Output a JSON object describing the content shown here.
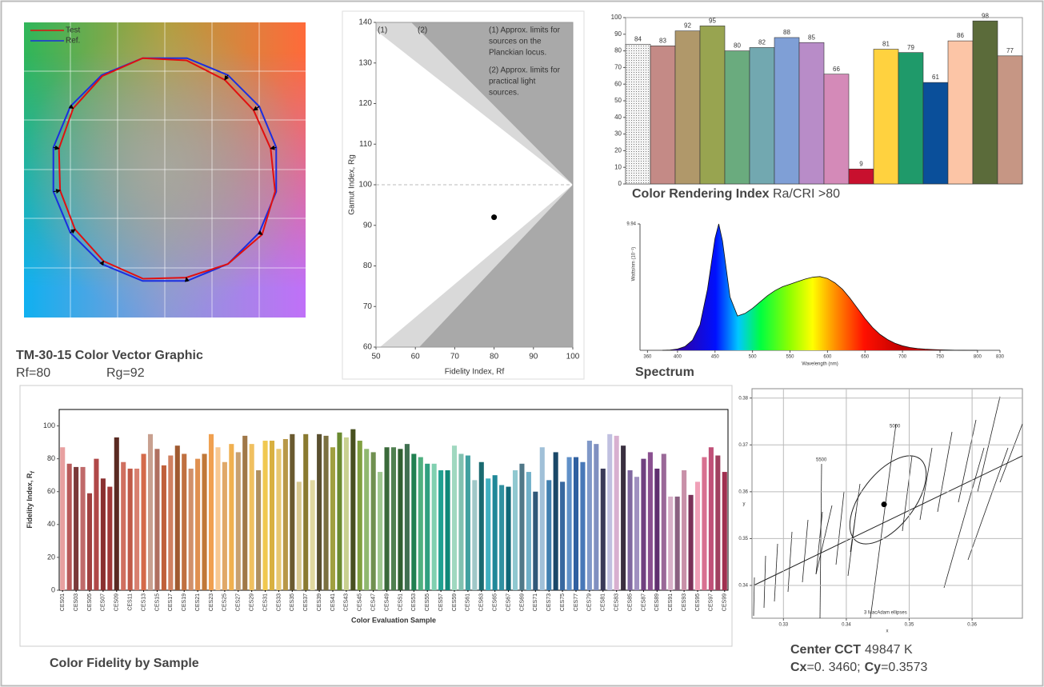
{
  "chart_data": [
    {
      "type": "vector",
      "title": "TM-30-15 Color Vector Graphic",
      "annotations": [
        "Rf=80",
        "Rg=92"
      ],
      "legend": "top-left",
      "series": [
        {
          "name": "Test",
          "color": "#e01010",
          "values": [
            0.95,
            0.94,
            0.95,
            0.98,
            1.0,
            0.99,
            0.97,
            0.95,
            0.94,
            0.95,
            0.97,
            0.98,
            0.97,
            1.0,
            1.03,
            0.99
          ]
        },
        {
          "name": "Ref.",
          "color": "#1a2ee0",
          "values": [
            1,
            1,
            1,
            1,
            1,
            1,
            1,
            1,
            1,
            1,
            1,
            1,
            1,
            1,
            1,
            1
          ]
        }
      ]
    },
    {
      "type": "scatter",
      "x": [
        80
      ],
      "y": [
        92
      ],
      "color": "#000000",
      "xlim": [
        50,
        100
      ],
      "ylim": [
        60,
        140
      ],
      "xticks": [
        50,
        60,
        70,
        80,
        90,
        100
      ],
      "yticks": [
        60,
        70,
        80,
        90,
        100,
        110,
        120,
        130,
        140
      ],
      "x_label": "Fidelity Index, Rf",
      "y_label": "Gamut Index, Rg",
      "annotations": [
        "(1)",
        "(2)",
        "(1) Approx. limits for",
        "sources on the",
        "Planckian locus.",
        "(2) Approx. limits for",
        "practical light",
        "sources."
      ]
    },
    {
      "type": "bar",
      "title": "Color Rendering Index",
      "subtitle": "Ra/CRI >80",
      "categories": [
        null,
        null,
        null,
        null,
        null,
        null,
        null,
        null,
        null,
        null,
        null,
        null,
        null,
        null,
        null,
        null
      ],
      "values": [
        84,
        83,
        92,
        95,
        80,
        82,
        88,
        85,
        66,
        9,
        81,
        79,
        61,
        86,
        98,
        77
      ],
      "colors": [
        "#e4e4e4",
        "#c48a86",
        "#b0986a",
        "#98a450",
        "#6aab7e",
        "#72a8b0",
        "#7f9fd6",
        "#b88cc8",
        "#d48ab8",
        "#c8102e",
        "#ffd23f",
        "#1f9a6a",
        "#0a4f9a",
        "#fcc5a6",
        "#5b6b3a",
        "#c69684"
      ],
      "ylim": [
        0,
        100
      ],
      "yticks": [
        0,
        10,
        20,
        30,
        40,
        50,
        60,
        70,
        80,
        90,
        100
      ]
    },
    {
      "type": "area",
      "title": "Spectrum",
      "x_label": "Wavelength (nm)",
      "y_label": "Watts/nm (10⁻¹)",
      "x": [
        380,
        390,
        400,
        410,
        420,
        430,
        440,
        450,
        455,
        460,
        470,
        480,
        490,
        500,
        510,
        520,
        530,
        540,
        550,
        560,
        570,
        580,
        590,
        600,
        610,
        620,
        630,
        640,
        650,
        660,
        670,
        680,
        690,
        700,
        710,
        720,
        730,
        740,
        750,
        760,
        770,
        780,
        790,
        800
      ],
      "values": [
        0,
        0.02,
        0.1,
        0.3,
        0.8,
        2.0,
        4.8,
        8.8,
        9.94,
        8.6,
        4.2,
        2.7,
        2.9,
        3.3,
        3.8,
        4.3,
        4.7,
        5.0,
        5.2,
        5.4,
        5.6,
        5.75,
        5.8,
        5.65,
        5.3,
        4.8,
        4.1,
        3.3,
        2.5,
        1.8,
        1.25,
        0.85,
        0.55,
        0.35,
        0.22,
        0.14,
        0.09,
        0.06,
        0.04,
        0.02,
        0.01,
        0.005,
        0,
        0
      ],
      "xlim": [
        350,
        830
      ],
      "ylim": [
        0,
        9.94
      ],
      "xticks": [
        360,
        400,
        450,
        500,
        550,
        600,
        650,
        700,
        750,
        800,
        830
      ],
      "yticks": [
        9.94
      ]
    },
    {
      "type": "bar",
      "title": "Color Fidelity by Sample",
      "x_label": "Color Evaluation Sample",
      "y_label": "Fidelity Index, R",
      "y_label_sub": "f",
      "categories": [
        "CES01",
        null,
        "CES03",
        null,
        "CES05",
        null,
        "CES07",
        null,
        "CES09",
        null,
        "CES11",
        null,
        "CES13",
        null,
        "CES15",
        null,
        "CES17",
        null,
        "CES19",
        null,
        "CES21",
        null,
        "CES23",
        null,
        "CES25",
        null,
        "CES27",
        null,
        "CES29",
        null,
        "CES31",
        null,
        "CES33",
        null,
        "CES35",
        null,
        "CES37",
        null,
        "CES39",
        null,
        "CES41",
        null,
        "CES43",
        null,
        "CES45",
        null,
        "CES47",
        null,
        "CES49",
        null,
        "CES51",
        null,
        "CES53",
        null,
        "CES55",
        null,
        "CES57",
        null,
        "CES59",
        null,
        "CES61",
        null,
        "CES63",
        null,
        "CES65",
        null,
        "CES67",
        null,
        "CES69",
        null,
        "CES71",
        null,
        "CES73",
        null,
        "CES75",
        null,
        "CES77",
        null,
        "CES79",
        null,
        "CES81",
        null,
        "CES83",
        null,
        "CES85",
        null,
        "CES87",
        null,
        "CES89",
        null,
        "CES91",
        null,
        "CES93",
        null,
        "CES95",
        null,
        "CES97",
        null,
        "CES99"
      ],
      "values": [
        87,
        77,
        75,
        75,
        59,
        80,
        68,
        63,
        93,
        78,
        74,
        74,
        83,
        95,
        86,
        76,
        82,
        88,
        83,
        74,
        80,
        83,
        95,
        87,
        78,
        89,
        84,
        94,
        89,
        73,
        91,
        91,
        86,
        92,
        95,
        66,
        95,
        67,
        95,
        94,
        87,
        96,
        93,
        98,
        91,
        86,
        84,
        72,
        87,
        87,
        86,
        89,
        83,
        81,
        77,
        77,
        73,
        73,
        88,
        83,
        82,
        67,
        78,
        68,
        70,
        64,
        63,
        73,
        77,
        72,
        60,
        87,
        67,
        84,
        66,
        81,
        81,
        78,
        91,
        89,
        74,
        95,
        94,
        88,
        73,
        69,
        80,
        84,
        74,
        83,
        57,
        57,
        73,
        58,
        66,
        81,
        87,
        82,
        72
      ],
      "colors": [
        "#e8a0a0",
        "#b85a5a",
        "#7a3a3a",
        "#c06a6a",
        "#a04040",
        "#b04848",
        "#8a3030",
        "#a03838",
        "#5a2a22",
        "#d07060",
        "#c05a48",
        "#d88070",
        "#d46a4a",
        "#c8a090",
        "#b07060",
        "#c0603a",
        "#d08060",
        "#a05a30",
        "#c07040",
        "#d0906a",
        "#e09050",
        "#c07838",
        "#f0a050",
        "#f8c890",
        "#e0a868",
        "#f0b050",
        "#c8a070",
        "#a07848",
        "#f0c060",
        "#b09060",
        "#f0c850",
        "#d8b040",
        "#e8c870",
        "#b89848",
        "#6a5a30",
        "#d8c890",
        "#8a7a30",
        "#e0d8a0",
        "#5a5030",
        "#7a7040",
        "#a0a040",
        "#6a8a30",
        "#c8d090",
        "#485020",
        "#80a040",
        "#90b870",
        "#709050",
        "#a0c890",
        "#3a6a3a",
        "#508050",
        "#306030",
        "#407050",
        "#208050",
        "#50b080",
        "#30a080",
        "#80d0b0",
        "#20a090",
        "#108878",
        "#a0d8c0",
        "#80c0b0",
        "#40a0a0",
        "#a0c8c8",
        "#1a6a70",
        "#40b0c0",
        "#208898",
        "#3090a0",
        "#106878",
        "#90c8d0",
        "#507888",
        "#70b0c8",
        "#305878",
        "#a0c0d8",
        "#4080b0",
        "#1a4868",
        "#3868a0",
        "#6090c8",
        "#3060a0",
        "#4878b8",
        "#8098c8",
        "#8090c0",
        "#3a3a58",
        "#c0c0e0",
        "#d8b0d0",
        "#3a3040",
        "#8068a0",
        "#a090c0",
        "#704080",
        "#8a5090",
        "#603070",
        "#9a6898",
        "#d8b0c8",
        "#8a6080",
        "#c890a8",
        "#7a3058",
        "#f0a0b8",
        "#d87090",
        "#c05078",
        "#a04060",
        "#a03050"
      ],
      "ylim": [
        0,
        110
      ],
      "yticks": [
        0,
        20,
        40,
        60,
        80,
        100
      ]
    },
    {
      "type": "scatter",
      "x": [
        0.346
      ],
      "y": [
        0.3573
      ],
      "color": "#000000",
      "grid": true,
      "xlim": [
        0.325,
        0.368
      ],
      "ylim": [
        0.333,
        0.382
      ],
      "xticks": [
        0.33,
        0.34,
        0.35,
        0.36
      ],
      "yticks": [
        0.34,
        0.35,
        0.36,
        0.37,
        0.38
      ],
      "x_label": "x",
      "y_label": "y",
      "annotations": [
        "5000",
        "5500",
        "3 MacAdam ellipses"
      ],
      "caption": {
        "title": "Center CCT",
        "cct": "49847 K",
        "cx_label": "Cx",
        "cx": "=0. 3460;",
        "cy_label": "Cy",
        "cy": "=0.3573"
      }
    }
  ]
}
